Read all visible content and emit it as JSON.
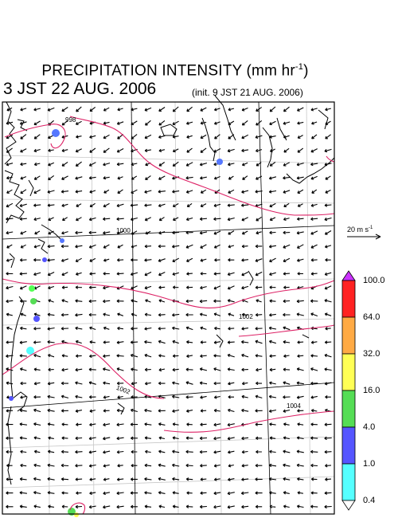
{
  "title": {
    "prefix": "PRECIPITATION INTENSITY (mm hr",
    "exponent": "-1",
    "suffix": ")"
  },
  "valid_time": "3 JST 22 AUG. 2006",
  "init_time": "(init. 9 JST 21 AUG. 2006)",
  "reference_vector": {
    "value": "20 m s",
    "exponent": "-1"
  },
  "colorbar": {
    "levels": [
      "0.4",
      "1.0",
      "4.0",
      "16.0",
      "32.0",
      "64.0",
      "100.0"
    ],
    "colors": [
      "#ffffff",
      "#55ffff",
      "#5555ff",
      "#55dd55",
      "#ffff55",
      "#ffaa44",
      "#ff2222",
      "#cc33ff"
    ]
  },
  "contours": [
    {
      "label": "998"
    },
    {
      "label": "1000"
    },
    {
      "label": "1002"
    },
    {
      "label": "1002"
    },
    {
      "label": "1004"
    }
  ],
  "colors": {
    "contour": "#dd2266",
    "coast": "#000000",
    "grid": "#c8c8c8",
    "frame": "#000000"
  }
}
